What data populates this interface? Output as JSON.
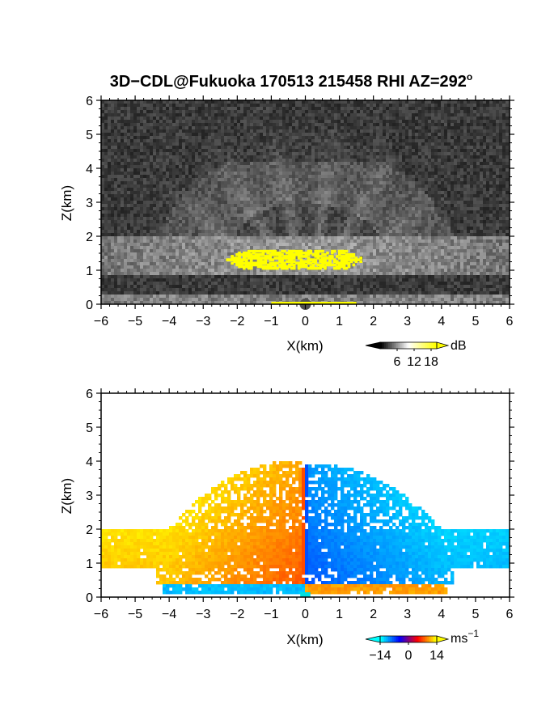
{
  "figure": {
    "title": "3D−CDL@Fukuoka 170513 215458 RHI AZ=292",
    "title_degree": "o"
  },
  "chart_data": [
    {
      "type": "heatmap",
      "quantity": "reflectivity",
      "xlabel": "X(km)",
      "ylabel": "Z(km)",
      "xlim": [
        -6,
        6
      ],
      "ylim": [
        0,
        6
      ],
      "xticks": [
        "−6",
        "−5",
        "−4",
        "−3",
        "−2",
        "−1",
        "0",
        "1",
        "2",
        "3",
        "4",
        "5",
        "6"
      ],
      "yticks": [
        "0",
        "1",
        "2",
        "3",
        "4",
        "5",
        "6"
      ],
      "colorbar": {
        "unit": "dB",
        "ticks": [
          "6",
          "12",
          "18"
        ],
        "range": [
          0,
          20
        ],
        "colors": [
          "#000000",
          "#ffffff",
          "#ffff00"
        ]
      },
      "features": {
        "layer_bottom_km": 0.9,
        "layer_top_km": 2.0,
        "strong_echo_x_range_km": [
          -2.4,
          1.7
        ],
        "strong_echo_z_range_km": [
          1.0,
          1.6
        ]
      }
    },
    {
      "type": "heatmap",
      "quantity": "radial velocity",
      "xlabel": "X(km)",
      "ylabel": "Z(km)",
      "xlim": [
        -6,
        6
      ],
      "ylim": [
        0,
        6
      ],
      "xticks": [
        "−6",
        "−5",
        "−4",
        "−3",
        "−2",
        "−1",
        "0",
        "1",
        "2",
        "3",
        "4",
        "5",
        "6"
      ],
      "yticks": [
        "0",
        "1",
        "2",
        "3",
        "4",
        "5",
        "6"
      ],
      "colorbar": {
        "unit": "ms",
        "unit_exp": "−1",
        "ticks": [
          "−14",
          "0",
          "14"
        ],
        "range": [
          -14,
          14
        ],
        "colors": [
          "#00ffff",
          "#0000ff",
          "#ff0000",
          "#ffff00"
        ]
      },
      "features": {
        "layer_bottom_km": 0.9,
        "layer_top_km": 2.0,
        "echo_top_left_km": 4.0,
        "echo_top_right_km": 3.9
      }
    }
  ]
}
